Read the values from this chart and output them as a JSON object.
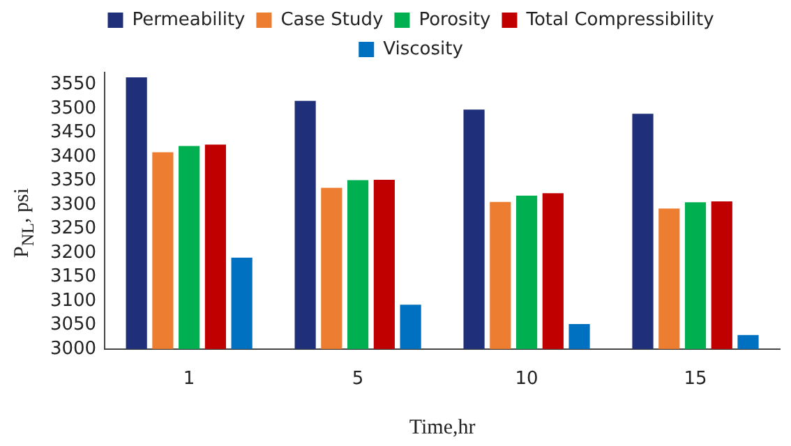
{
  "chart_data": {
    "type": "bar",
    "xlabel": "Time,hr",
    "ylabel": "P$_{NL}$, psi",
    "categories": [
      "1",
      "5",
      "10",
      "15"
    ],
    "series": [
      {
        "name": "Permeability",
        "color": "#1f2f7a",
        "values": [
          3565,
          3516,
          3498,
          3489
        ]
      },
      {
        "name": "Case Study",
        "color": "#ed7d31",
        "values": [
          3409,
          3335,
          3306,
          3292
        ]
      },
      {
        "name": "Porosity",
        "color": "#00b050",
        "values": [
          3422,
          3351,
          3319,
          3305
        ]
      },
      {
        "name": "Total Compressibility",
        "color": "#c00000",
        "values": [
          3425,
          3352,
          3324,
          3307
        ]
      },
      {
        "name": "Viscosity",
        "color": "#0070c0",
        "values": [
          3190,
          3092,
          3052,
          3029
        ]
      }
    ],
    "ylim": [
      3000,
      3575
    ],
    "yticks": [
      3000,
      3050,
      3100,
      3150,
      3200,
      3250,
      3300,
      3350,
      3400,
      3450,
      3500,
      3550
    ],
    "grid": false,
    "legend": "top"
  }
}
